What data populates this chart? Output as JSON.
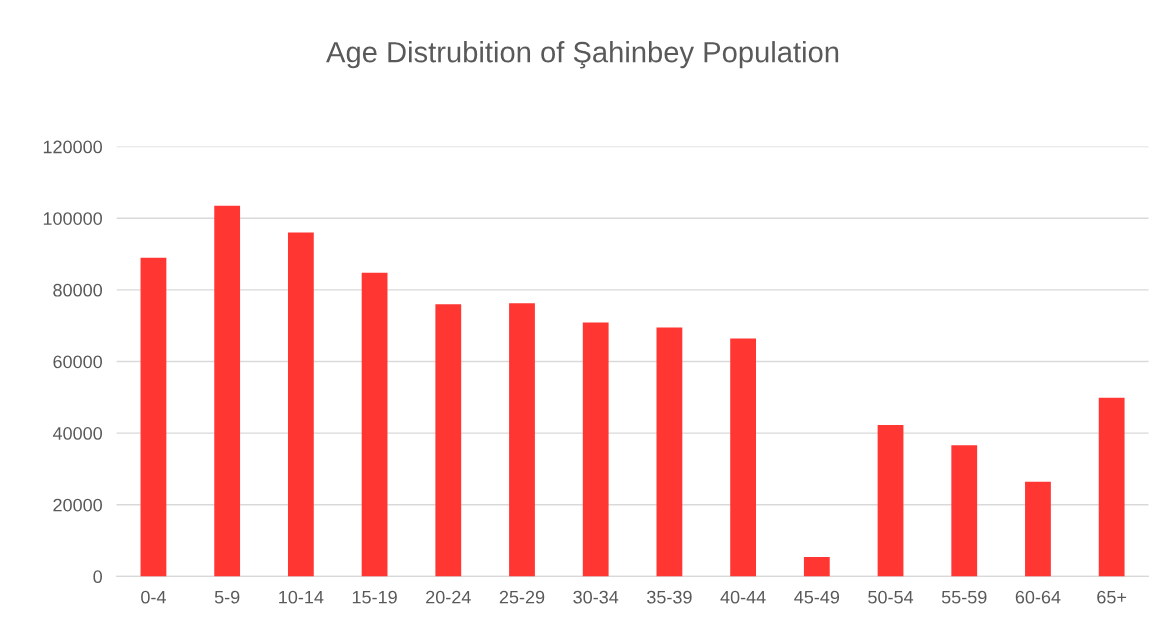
{
  "chart_data": {
    "type": "bar",
    "title": "Age Distrubition of Şahinbey Population",
    "categories": [
      "0-4",
      "5-9",
      "10-14",
      "15-19",
      "20-24",
      "25-29",
      "30-34",
      "35-39",
      "40-44",
      "45-49",
      "50-54",
      "55-59",
      "60-64",
      "65+"
    ],
    "values": [
      89000,
      103500,
      96000,
      84800,
      76000,
      76300,
      70900,
      69500,
      66400,
      5400,
      42300,
      36600,
      26400,
      49900
    ],
    "color": "#ff3632",
    "ylim": [
      0,
      120000
    ],
    "yticks": [
      0,
      20000,
      40000,
      60000,
      80000,
      100000,
      120000
    ],
    "grid": "y"
  }
}
